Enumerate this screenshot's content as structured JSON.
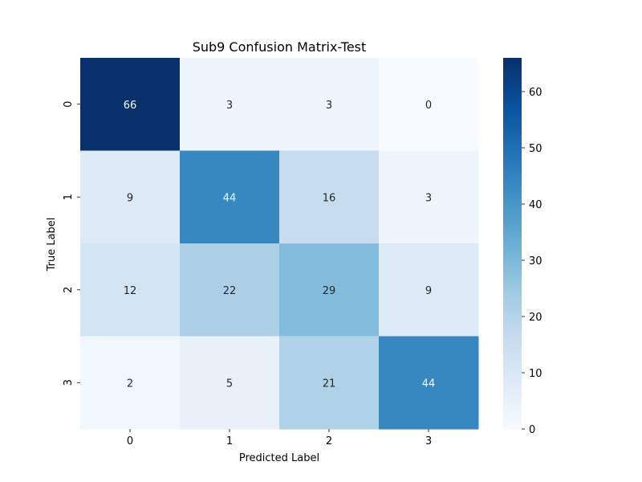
{
  "chart_data": {
    "type": "heatmap",
    "title": "Sub9 Confusion Matrix-Test",
    "xlabel": "Predicted Label",
    "ylabel": "True Label",
    "x_categories": [
      "0",
      "1",
      "2",
      "3"
    ],
    "y_categories": [
      "0",
      "1",
      "2",
      "3"
    ],
    "values": [
      [
        66,
        3,
        3,
        0
      ],
      [
        9,
        44,
        16,
        3
      ],
      [
        12,
        22,
        29,
        9
      ],
      [
        2,
        5,
        21,
        44
      ]
    ],
    "colormap": "Blues",
    "colorbar": {
      "range": [
        0,
        66
      ],
      "ticks": [
        0,
        10,
        20,
        30,
        40,
        50,
        60
      ]
    }
  }
}
